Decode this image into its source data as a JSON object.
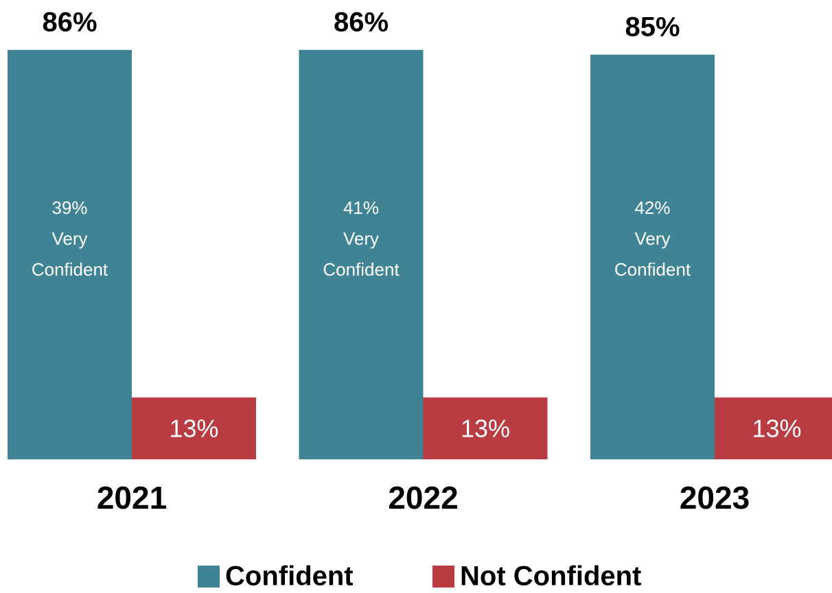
{
  "chart_data": {
    "type": "bar",
    "categories": [
      "2021",
      "2022",
      "2023"
    ],
    "series": [
      {
        "name": "Confident",
        "color": "#3f8395",
        "values": [
          86,
          86,
          85
        ],
        "value_labels": [
          "86%",
          "86%",
          "85%"
        ]
      },
      {
        "name": "Not Confident",
        "color": "#b83c42",
        "values": [
          13,
          13,
          13
        ],
        "value_labels": [
          "13%",
          "13%",
          "13%"
        ]
      }
    ],
    "annotations": [
      [
        "39%",
        "Very",
        "Confident"
      ],
      [
        "41%",
        "Very",
        "Confident"
      ],
      [
        "42%",
        "Very",
        "Confident"
      ]
    ],
    "ylim": [
      0,
      90
    ],
    "legend": "bottom"
  }
}
